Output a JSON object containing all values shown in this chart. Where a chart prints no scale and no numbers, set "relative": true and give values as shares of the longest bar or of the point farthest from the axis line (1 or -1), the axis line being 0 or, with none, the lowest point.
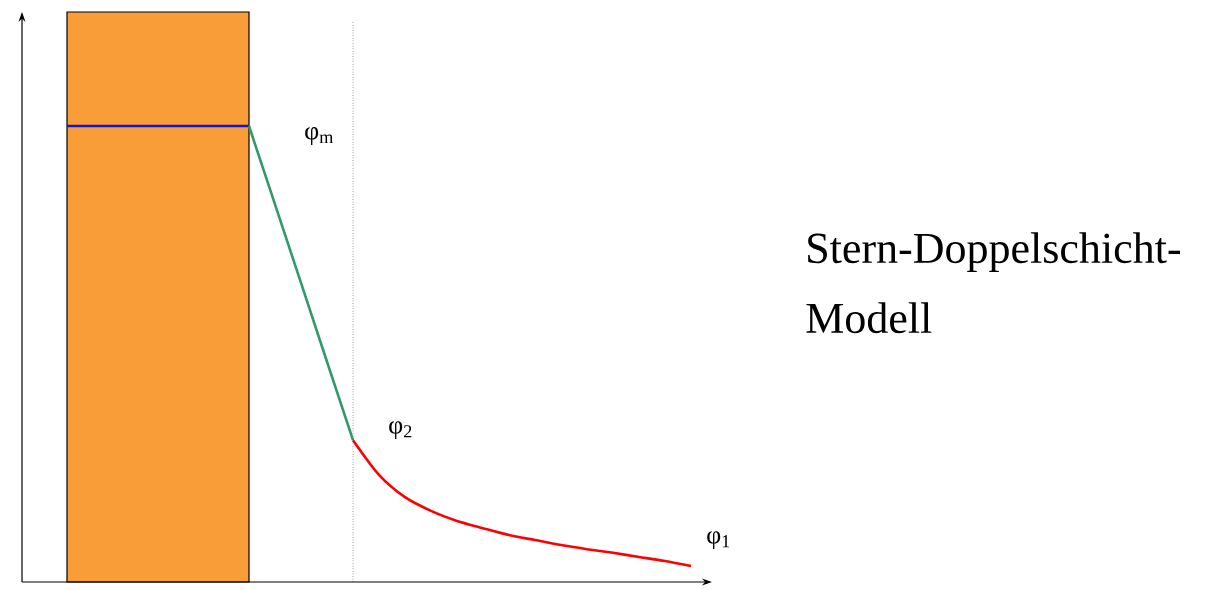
{
  "chart_data": {
    "type": "line",
    "relative": true,
    "title": "Stern-Doppelschicht-Modell",
    "categories": [
      null,
      null,
      null,
      null,
      null,
      null,
      null,
      null,
      null,
      null,
      null,
      null,
      null,
      null,
      null,
      null,
      null,
      null,
      null,
      null,
      null,
      null,
      null,
      null,
      null
    ],
    "series": [
      {
        "color": "#1414d8",
        "values": [
          1,
          1,
          1,
          1,
          1,
          1,
          1,
          1,
          null,
          null,
          null,
          null,
          null,
          null,
          null,
          null,
          null,
          null,
          null,
          null,
          null,
          null,
          null,
          null,
          null
        ]
      },
      {
        "color": "#339966",
        "values": [
          null,
          null,
          null,
          null,
          null,
          null,
          null,
          1,
          0.828,
          0.656,
          0.483,
          0.311,
          null,
          null,
          null,
          null,
          null,
          null,
          null,
          null,
          null,
          null,
          null,
          null,
          null
        ]
      },
      {
        "color": "#ff0000",
        "values": [
          null,
          null,
          null,
          null,
          null,
          null,
          null,
          null,
          null,
          null,
          null,
          0.311,
          0.235,
          0.186,
          0.156,
          0.134,
          0.118,
          0.103,
          0.092,
          0.081,
          0.072,
          0.064,
          0.055,
          0.046,
          0.035
        ]
      }
    ],
    "annotations": [
      "φ$_{m}$",
      "φ$_{2}$",
      "φ$_{1}$"
    ]
  }
}
